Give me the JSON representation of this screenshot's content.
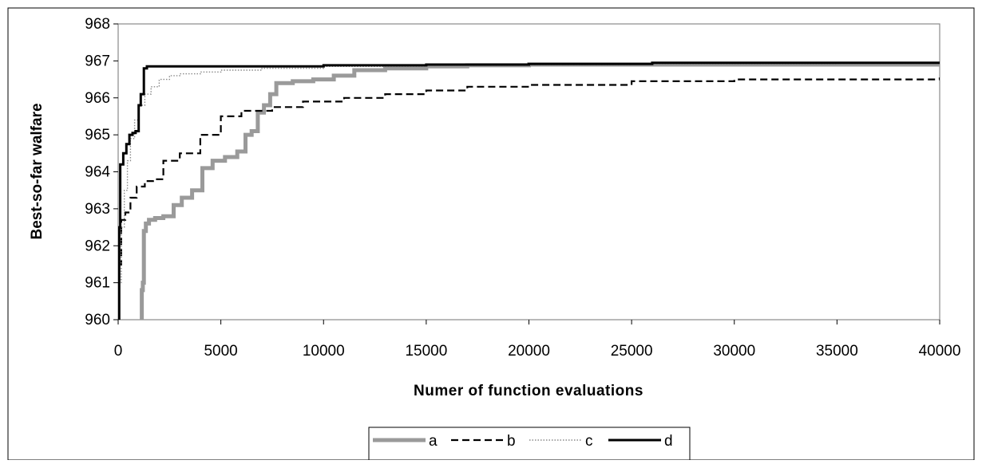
{
  "chart_data": {
    "type": "line",
    "title": "",
    "xlabel": "Numer of function evaluations",
    "ylabel": "Best-so-far walfare",
    "xlim": [
      0,
      40000
    ],
    "ylim": [
      960,
      968
    ],
    "x_ticks": [
      0,
      5000,
      10000,
      15000,
      20000,
      25000,
      30000,
      35000,
      40000
    ],
    "y_ticks": [
      960,
      961,
      962,
      963,
      964,
      965,
      966,
      967,
      968
    ],
    "x_tick_labels": [
      "0",
      "5000",
      "10000",
      "15000",
      "20000",
      "25000",
      "30000",
      "35000",
      "40000"
    ],
    "y_tick_labels": [
      "960",
      "961",
      "962",
      "963",
      "964",
      "965",
      "966",
      "967",
      "968"
    ],
    "grid": false,
    "legend_position": "bottom",
    "series": [
      {
        "name": "a",
        "color": "#9a9a9a",
        "style": "thick-gray",
        "x": [
          1100,
          1150,
          1200,
          1250,
          1350,
          1500,
          1800,
          2200,
          2700,
          3100,
          3600,
          4100,
          4600,
          5200,
          5800,
          6200,
          6500,
          6800,
          7100,
          7400,
          7700,
          8500,
          9500,
          10500,
          11500,
          13000,
          15000,
          17000,
          20000,
          25000,
          30000,
          35000,
          40000
        ],
        "y": [
          960.0,
          960.8,
          961.0,
          962.4,
          962.6,
          962.7,
          962.75,
          962.8,
          963.1,
          963.3,
          963.5,
          964.1,
          964.3,
          964.4,
          964.55,
          965.0,
          965.1,
          965.6,
          965.8,
          966.1,
          966.4,
          966.45,
          966.5,
          966.6,
          966.75,
          966.8,
          966.85,
          966.88,
          966.9,
          966.9,
          966.9,
          966.9,
          966.9
        ]
      },
      {
        "name": "b",
        "color": "#000000",
        "style": "dashed",
        "x": [
          0,
          150,
          350,
          600,
          900,
          1300,
          1700,
          2200,
          3000,
          4000,
          5000,
          6000,
          7500,
          9000,
          11000,
          13000,
          15000,
          17000,
          20000,
          25000,
          30000,
          35000,
          40000
        ],
        "y": [
          961.5,
          962.7,
          962.9,
          963.3,
          963.6,
          963.75,
          963.8,
          964.3,
          964.5,
          965.0,
          965.5,
          965.65,
          965.75,
          965.9,
          966.0,
          966.1,
          966.2,
          966.3,
          966.35,
          966.45,
          966.5,
          966.5,
          966.55
        ]
      },
      {
        "name": "c",
        "color": "#8a8a8a",
        "style": "dotted",
        "x": [
          0,
          150,
          300,
          450,
          600,
          800,
          1000,
          1300,
          1600,
          2000,
          2500,
          3000,
          4000,
          5000,
          7000,
          10000,
          15000,
          20000,
          25000,
          30000,
          35000,
          40000
        ],
        "y": [
          961.0,
          962.5,
          963.5,
          964.3,
          964.9,
          965.4,
          965.8,
          966.1,
          966.3,
          966.5,
          966.6,
          966.65,
          966.7,
          966.75,
          966.8,
          966.85,
          966.88,
          966.9,
          966.92,
          966.92,
          966.93,
          966.95
        ]
      },
      {
        "name": "d",
        "color": "#000000",
        "style": "solid",
        "x": [
          0,
          50,
          100,
          250,
          400,
          550,
          700,
          850,
          1000,
          1100,
          1250,
          1400,
          3000,
          6000,
          10000,
          15000,
          20000,
          25000,
          26000,
          30000,
          35000,
          40000
        ],
        "y": [
          960.0,
          962.5,
          964.2,
          964.5,
          964.75,
          965.0,
          965.05,
          965.1,
          965.8,
          966.1,
          966.8,
          966.85,
          966.85,
          966.85,
          966.88,
          966.9,
          966.92,
          966.92,
          966.95,
          966.95,
          966.95,
          966.95
        ]
      }
    ]
  }
}
